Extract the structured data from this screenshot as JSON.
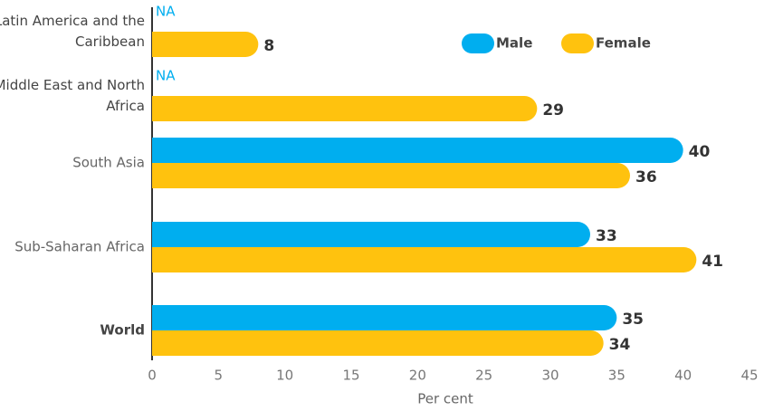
{
  "chart_data": {
    "type": "bar",
    "orientation": "horizontal",
    "categories": [
      "Latin America and the Caribbean",
      "Middle East and North Africa",
      "South Asia",
      "Sub-Saharan Africa",
      "World"
    ],
    "series": [
      {
        "name": "Male",
        "color": "#00aeef",
        "values": [
          null,
          null,
          40,
          33,
          35
        ],
        "value_labels": [
          "NA",
          "NA",
          "40",
          "33",
          "35"
        ]
      },
      {
        "name": "Female",
        "color": "#ffc20e",
        "values": [
          8,
          29,
          36,
          41,
          34
        ]
      }
    ],
    "xlabel": "Per cent",
    "xlim": [
      0,
      45
    ],
    "xticks": [
      0,
      5,
      10,
      15,
      20,
      25,
      30,
      35,
      40,
      45
    ],
    "grid": false,
    "legend": "top-right"
  }
}
